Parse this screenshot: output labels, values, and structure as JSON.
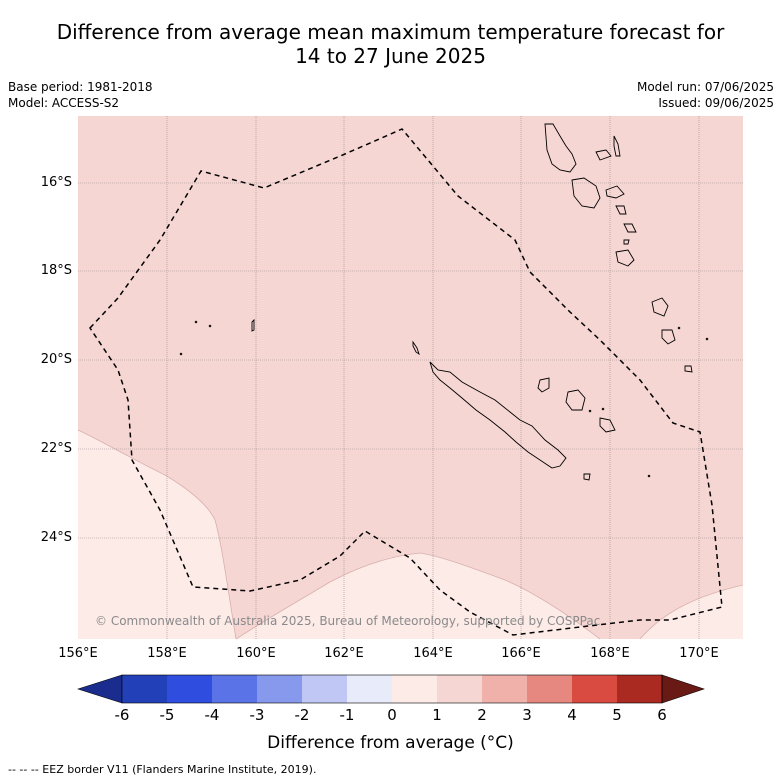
{
  "header": {
    "title_line1": "Difference from average mean maximum temperature forecast for",
    "title_line2": "14 to 27 June 2025",
    "base_period": "Base period: 1981-2018",
    "model": "Model: ACCESS-S2",
    "model_run": "Model run: 07/06/2025",
    "issued": "Issued: 09/06/2025"
  },
  "map": {
    "latitudes": [
      "16°S",
      "18°S",
      "20°S",
      "22°S",
      "24°S"
    ],
    "longitudes": [
      "156°E",
      "158°E",
      "160°E",
      "162°E",
      "164°E",
      "166°E",
      "168°E",
      "170°E"
    ],
    "copyright": "© Commonwealth of Australia 2025, Bureau of Meteorology, supported by COSPPac",
    "colors": {
      "anomaly_0_to_1": "#fdebe8",
      "anomaly_1_to_2": "#f5d6d3",
      "grid": "#9a8a8a",
      "coast": "#000000"
    }
  },
  "colorbar": {
    "ticks": [
      "-6",
      "-5",
      "-4",
      "-3",
      "-2",
      "-1",
      "0",
      "1",
      "2",
      "3",
      "4",
      "5",
      "6"
    ],
    "colors": [
      "#1b2c8f",
      "#2240b8",
      "#2f4ddf",
      "#5a73e6",
      "#8799ec",
      "#c0c7f4",
      "#e8ebfa",
      "#fdebe8",
      "#f5d6d3",
      "#f0b1ab",
      "#e68780",
      "#d94a40",
      "#aa2921",
      "#6a1a14"
    ],
    "title": "Difference from average (°C)"
  },
  "footnote": "-- -- -- EEZ border V11 (Flanders Marine Institute, 2019)."
}
